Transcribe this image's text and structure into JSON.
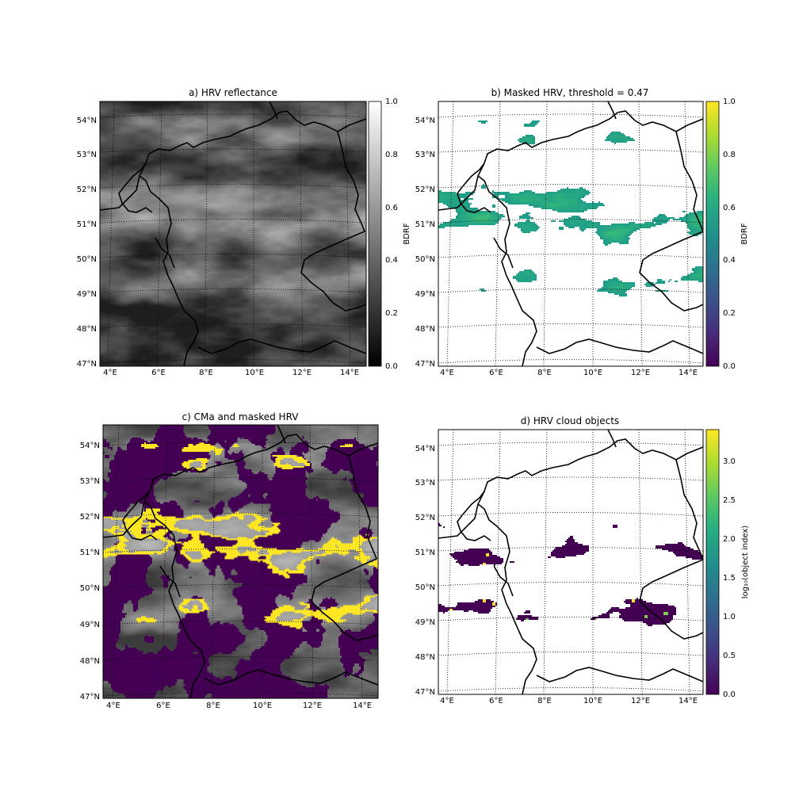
{
  "chart_data": [
    {
      "type": "heatmap",
      "title": "a) HRV reflectance",
      "colormap": "gray",
      "nan_color": "#ffffff",
      "seed": 11,
      "lon_ticks": [
        "4°E",
        "6°E",
        "8°E",
        "10°E",
        "12°E",
        "14°E"
      ],
      "lat_ticks": [
        "47°N",
        "48°N",
        "49°N",
        "50°N",
        "51°N",
        "52°N",
        "53°N",
        "54°N"
      ],
      "colorbar": {
        "label": "BDRF",
        "range": [
          0.0,
          1.0
        ],
        "ticks": [
          "0.0",
          "0.2",
          "0.4",
          "0.6",
          "0.8",
          "1.0"
        ]
      }
    },
    {
      "type": "heatmap",
      "title": "b) Masked HRV, threshold = 0.47",
      "colormap": "viridis",
      "nan_color": "#ffffff",
      "threshold": 0.47,
      "seed": 11,
      "lon_ticks": [
        "4°E",
        "6°E",
        "8°E",
        "10°E",
        "12°E",
        "14°E"
      ],
      "lat_ticks": [
        "47°N",
        "48°N",
        "49°N",
        "50°N",
        "51°N",
        "52°N",
        "53°N",
        "54°N"
      ],
      "colorbar": {
        "label": "BDRF",
        "range": [
          0.0,
          1.0
        ],
        "ticks": [
          "0.0",
          "0.2",
          "0.4",
          "0.6",
          "0.8",
          "1.0"
        ]
      }
    },
    {
      "type": "heatmap",
      "title": "c) CMa and masked HRV",
      "colormap": "gray",
      "nan_color": "#ffffff",
      "overlay_colors": {
        "cloud_mask": "#440154",
        "mask_edge": "#fde725"
      },
      "seed": 11,
      "lon_ticks": [
        "4°E",
        "6°E",
        "8°E",
        "10°E",
        "12°E",
        "14°E"
      ],
      "lat_ticks": [
        "47°N",
        "48°N",
        "49°N",
        "50°N",
        "51°N",
        "52°N",
        "53°N",
        "54°N"
      ],
      "colorbar": null
    },
    {
      "type": "heatmap",
      "title": "d) HRV cloud objects",
      "colormap": "viridis",
      "nan_color": "#ffffff",
      "seed": 23,
      "lon_ticks": [
        "4°E",
        "6°E",
        "8°E",
        "10°E",
        "12°E",
        "14°E"
      ],
      "lat_ticks": [
        "47°N",
        "48°N",
        "49°N",
        "50°N",
        "51°N",
        "52°N",
        "53°N",
        "54°N"
      ],
      "colorbar": {
        "label": "log₁₀(object index)",
        "range": [
          0.0,
          3.4
        ],
        "ticks": [
          "0.0",
          "0.5",
          "1.0",
          "1.5",
          "2.0",
          "2.5",
          "3.0"
        ]
      }
    }
  ]
}
